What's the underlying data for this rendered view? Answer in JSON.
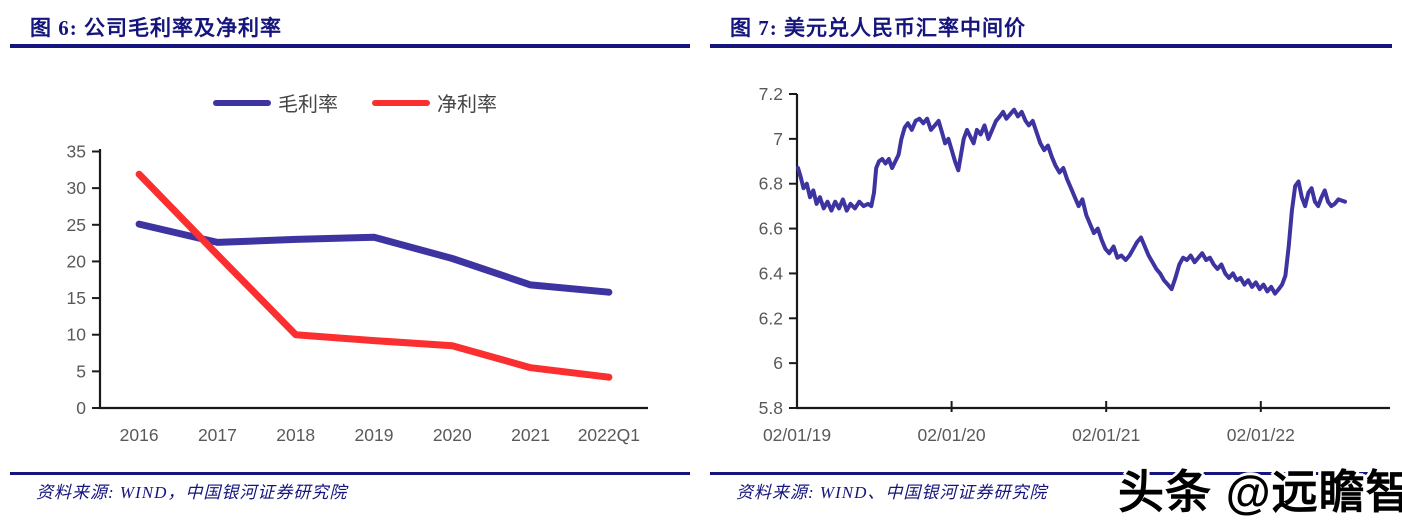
{
  "theme": {
    "accent": "#15157d",
    "axis_color": "#1a1a1a",
    "tick_label_color": "#595959",
    "legend_text_color": "#444444",
    "background": "#ffffff"
  },
  "watermark": {
    "text": "头条 @远瞻智库"
  },
  "left_panel": {
    "title": "图 6: 公司毛利率及净利率",
    "source": "资料来源: WIND，中国银河证券研究院"
  },
  "right_panel": {
    "title": "图 7: 美元兑人民币汇率中间价",
    "source": "资料来源: WIND、中国银河证券研究院"
  },
  "chart_data": [
    {
      "type": "line",
      "title": "公司毛利率及净利率",
      "categories": [
        "2016",
        "2017",
        "2018",
        "2019",
        "2020",
        "2021",
        "2022Q1"
      ],
      "series": [
        {
          "name": "毛利率",
          "color": "#3d34a1",
          "values": [
            25.1,
            22.6,
            23.0,
            23.3,
            20.4,
            16.8,
            15.8
          ]
        },
        {
          "name": "净利率",
          "color": "#fb2f2f",
          "values": [
            31.9,
            20.9,
            10.0,
            9.2,
            8.5,
            5.5,
            4.2
          ]
        }
      ],
      "xlabel": "",
      "ylabel": "",
      "ylim": [
        0,
        35
      ],
      "yticks": [
        "0",
        "5",
        "10",
        "15",
        "20",
        "25",
        "30",
        "35"
      ],
      "grid": false,
      "legend_position": "top"
    },
    {
      "type": "line",
      "title": "美元兑人民币汇率中间价",
      "xticks": [
        "02/01/19",
        "02/01/20",
        "02/01/21",
        "02/01/22"
      ],
      "xlabel": "",
      "ylabel": "",
      "ylim": [
        5.8,
        7.2
      ],
      "yticks": [
        "5.8",
        "6",
        "6.2",
        "6.4",
        "6.6",
        "6.8",
        "7",
        "7.2"
      ],
      "grid": false,
      "legend_position": "none",
      "series": [
        {
          "name": "美元兑人民币汇率中间价",
          "color": "#3d34a1",
          "points": [
            [
              0,
              6.87
            ],
            [
              0.005,
              6.83
            ],
            [
              0.01,
              6.78
            ],
            [
              0.016,
              6.8
            ],
            [
              0.022,
              6.74
            ],
            [
              0.028,
              6.77
            ],
            [
              0.034,
              6.71
            ],
            [
              0.04,
              6.74
            ],
            [
              0.047,
              6.69
            ],
            [
              0.054,
              6.72
            ],
            [
              0.061,
              6.68
            ],
            [
              0.068,
              6.72
            ],
            [
              0.075,
              6.69
            ],
            [
              0.082,
              6.73
            ],
            [
              0.089,
              6.68
            ],
            [
              0.096,
              6.71
            ],
            [
              0.104,
              6.69
            ],
            [
              0.112,
              6.72
            ],
            [
              0.12,
              6.7
            ],
            [
              0.128,
              6.71
            ],
            [
              0.134,
              6.7
            ],
            [
              0.139,
              6.76
            ],
            [
              0.143,
              6.87
            ],
            [
              0.148,
              6.9
            ],
            [
              0.154,
              6.91
            ],
            [
              0.16,
              6.89
            ],
            [
              0.166,
              6.91
            ],
            [
              0.172,
              6.87
            ],
            [
              0.178,
              6.9
            ],
            [
              0.184,
              6.93
            ],
            [
              0.189,
              7.0
            ],
            [
              0.195,
              7.05
            ],
            [
              0.201,
              7.07
            ],
            [
              0.208,
              7.04
            ],
            [
              0.215,
              7.08
            ],
            [
              0.222,
              7.09
            ],
            [
              0.229,
              7.07
            ],
            [
              0.236,
              7.09
            ],
            [
              0.243,
              7.04
            ],
            [
              0.25,
              7.06
            ],
            [
              0.257,
              7.08
            ],
            [
              0.263,
              7.03
            ],
            [
              0.269,
              6.98
            ],
            [
              0.275,
              7.0
            ],
            [
              0.281,
              6.95
            ],
            [
              0.287,
              6.9
            ],
            [
              0.293,
              6.86
            ],
            [
              0.298,
              6.93
            ],
            [
              0.303,
              7.0
            ],
            [
              0.309,
              7.04
            ],
            [
              0.315,
              7.01
            ],
            [
              0.321,
              6.98
            ],
            [
              0.327,
              7.04
            ],
            [
              0.334,
              7.02
            ],
            [
              0.341,
              7.06
            ],
            [
              0.348,
              7.0
            ],
            [
              0.355,
              7.04
            ],
            [
              0.362,
              7.08
            ],
            [
              0.369,
              7.1
            ],
            [
              0.375,
              7.12
            ],
            [
              0.381,
              7.09
            ],
            [
              0.388,
              7.11
            ],
            [
              0.395,
              7.13
            ],
            [
              0.402,
              7.1
            ],
            [
              0.409,
              7.12
            ],
            [
              0.416,
              7.08
            ],
            [
              0.422,
              7.06
            ],
            [
              0.429,
              7.08
            ],
            [
              0.436,
              7.03
            ],
            [
              0.443,
              6.98
            ],
            [
              0.45,
              6.95
            ],
            [
              0.457,
              6.97
            ],
            [
              0.464,
              6.92
            ],
            [
              0.471,
              6.88
            ],
            [
              0.478,
              6.85
            ],
            [
              0.485,
              6.87
            ],
            [
              0.492,
              6.82
            ],
            [
              0.499,
              6.78
            ],
            [
              0.506,
              6.74
            ],
            [
              0.513,
              6.7
            ],
            [
              0.52,
              6.73
            ],
            [
              0.527,
              6.66
            ],
            [
              0.534,
              6.62
            ],
            [
              0.541,
              6.58
            ],
            [
              0.548,
              6.6
            ],
            [
              0.555,
              6.55
            ],
            [
              0.562,
              6.51
            ],
            [
              0.569,
              6.49
            ],
            [
              0.577,
              6.52
            ],
            [
              0.584,
              6.47
            ],
            [
              0.591,
              6.48
            ],
            [
              0.599,
              6.46
            ],
            [
              0.606,
              6.48
            ],
            [
              0.613,
              6.51
            ],
            [
              0.62,
              6.54
            ],
            [
              0.627,
              6.56
            ],
            [
              0.634,
              6.52
            ],
            [
              0.641,
              6.48
            ],
            [
              0.648,
              6.45
            ],
            [
              0.655,
              6.42
            ],
            [
              0.662,
              6.4
            ],
            [
              0.669,
              6.37
            ],
            [
              0.676,
              6.35
            ],
            [
              0.683,
              6.33
            ],
            [
              0.69,
              6.38
            ],
            [
              0.697,
              6.44
            ],
            [
              0.704,
              6.47
            ],
            [
              0.711,
              6.46
            ],
            [
              0.718,
              6.48
            ],
            [
              0.725,
              6.45
            ],
            [
              0.732,
              6.47
            ],
            [
              0.739,
              6.49
            ],
            [
              0.746,
              6.46
            ],
            [
              0.753,
              6.47
            ],
            [
              0.76,
              6.44
            ],
            [
              0.767,
              6.42
            ],
            [
              0.774,
              6.44
            ],
            [
              0.781,
              6.4
            ],
            [
              0.788,
              6.38
            ],
            [
              0.795,
              6.4
            ],
            [
              0.802,
              6.37
            ],
            [
              0.809,
              6.38
            ],
            [
              0.816,
              6.35
            ],
            [
              0.823,
              6.37
            ],
            [
              0.83,
              6.34
            ],
            [
              0.837,
              6.36
            ],
            [
              0.844,
              6.33
            ],
            [
              0.851,
              6.35
            ],
            [
              0.858,
              6.32
            ],
            [
              0.865,
              6.34
            ],
            [
              0.872,
              6.31
            ],
            [
              0.879,
              6.33
            ],
            [
              0.885,
              6.35
            ],
            [
              0.891,
              6.39
            ],
            [
              0.897,
              6.52
            ],
            [
              0.903,
              6.68
            ],
            [
              0.909,
              6.79
            ],
            [
              0.915,
              6.81
            ],
            [
              0.921,
              6.74
            ],
            [
              0.927,
              6.7
            ],
            [
              0.933,
              6.76
            ],
            [
              0.939,
              6.78
            ],
            [
              0.945,
              6.72
            ],
            [
              0.951,
              6.7
            ],
            [
              0.957,
              6.74
            ],
            [
              0.963,
              6.77
            ],
            [
              0.969,
              6.72
            ],
            [
              0.975,
              6.7
            ],
            [
              0.981,
              6.71
            ],
            [
              0.988,
              6.73
            ],
            [
              1,
              6.72
            ]
          ]
        }
      ]
    }
  ]
}
